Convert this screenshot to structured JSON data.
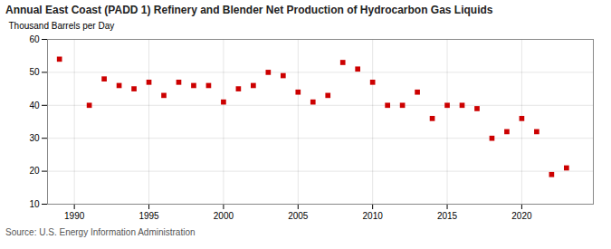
{
  "chart_data": {
    "type": "scatter",
    "title": "Annual East Coast (PADD 1) Refinery and Blender Net Production of Hydrocarbon Gas Liquids",
    "ylabel": "Thousand Barrels per Day",
    "source": "Source: U.S. Energy Information Administration",
    "x": [
      1989,
      1991,
      1992,
      1993,
      1994,
      1995,
      1996,
      1997,
      1998,
      1999,
      2000,
      2001,
      2002,
      2003,
      2004,
      2005,
      2006,
      2007,
      2008,
      2009,
      2010,
      2011,
      2012,
      2013,
      2014,
      2015,
      2016,
      2017,
      2018,
      2019,
      2020,
      2021,
      2022,
      2023
    ],
    "values": [
      54,
      40,
      48,
      46,
      45,
      47,
      43,
      47,
      46,
      46,
      41,
      45,
      46,
      50,
      49,
      44,
      41,
      43,
      53,
      51,
      47,
      40,
      40,
      44,
      36,
      40,
      40,
      39,
      30,
      32,
      36,
      32,
      19,
      21
    ],
    "color": "#cc0000",
    "marker": "square",
    "xlim": [
      1988.2,
      2024.8
    ],
    "ylim": [
      10,
      60
    ],
    "xticks": [
      1990,
      1995,
      2000,
      2005,
      2010,
      2015,
      2020
    ],
    "yticks": [
      10,
      20,
      30,
      40,
      50,
      60
    ],
    "grid": true
  }
}
